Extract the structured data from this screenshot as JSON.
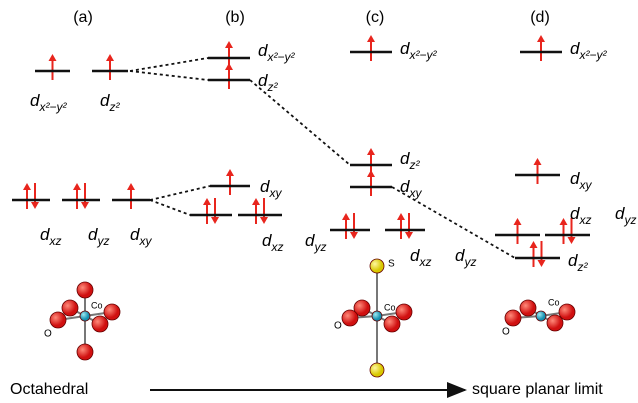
{
  "columns": [
    "(a)",
    "(b)",
    "(c)",
    "(d)"
  ],
  "orbitals": [
    {
      "base": "d",
      "sub": "x²−y²"
    },
    {
      "base": "d",
      "sub": "z²"
    },
    {
      "base": "d",
      "sub": "xz"
    },
    {
      "base": "d",
      "sub": "yz"
    },
    {
      "base": "d",
      "sub": "xy"
    },
    {
      "base": "d",
      "sub": "x²−y²"
    },
    {
      "base": "d",
      "sub": "z²"
    },
    {
      "base": "d",
      "sub": "xy"
    },
    {
      "base": "d",
      "sub": "xz"
    },
    {
      "base": "d",
      "sub": "yz"
    },
    {
      "base": "d",
      "sub": "x²−y²"
    },
    {
      "base": "d",
      "sub": "z²"
    },
    {
      "base": "d",
      "sub": "xy"
    },
    {
      "base": "d",
      "sub": "xz"
    },
    {
      "base": "d",
      "sub": "yz"
    },
    {
      "base": "d",
      "sub": "x²−y²"
    },
    {
      "base": "d",
      "sub": "xy"
    },
    {
      "base": "d",
      "sub": "xz"
    },
    {
      "base": "d",
      "sub": "yz"
    },
    {
      "base": "d",
      "sub": "z²"
    }
  ],
  "atoms": [
    "Co",
    "O",
    "Co",
    "O",
    "S",
    "Co",
    "O"
  ],
  "axis": {
    "start": "Octahedral",
    "end": "square planar limit"
  }
}
